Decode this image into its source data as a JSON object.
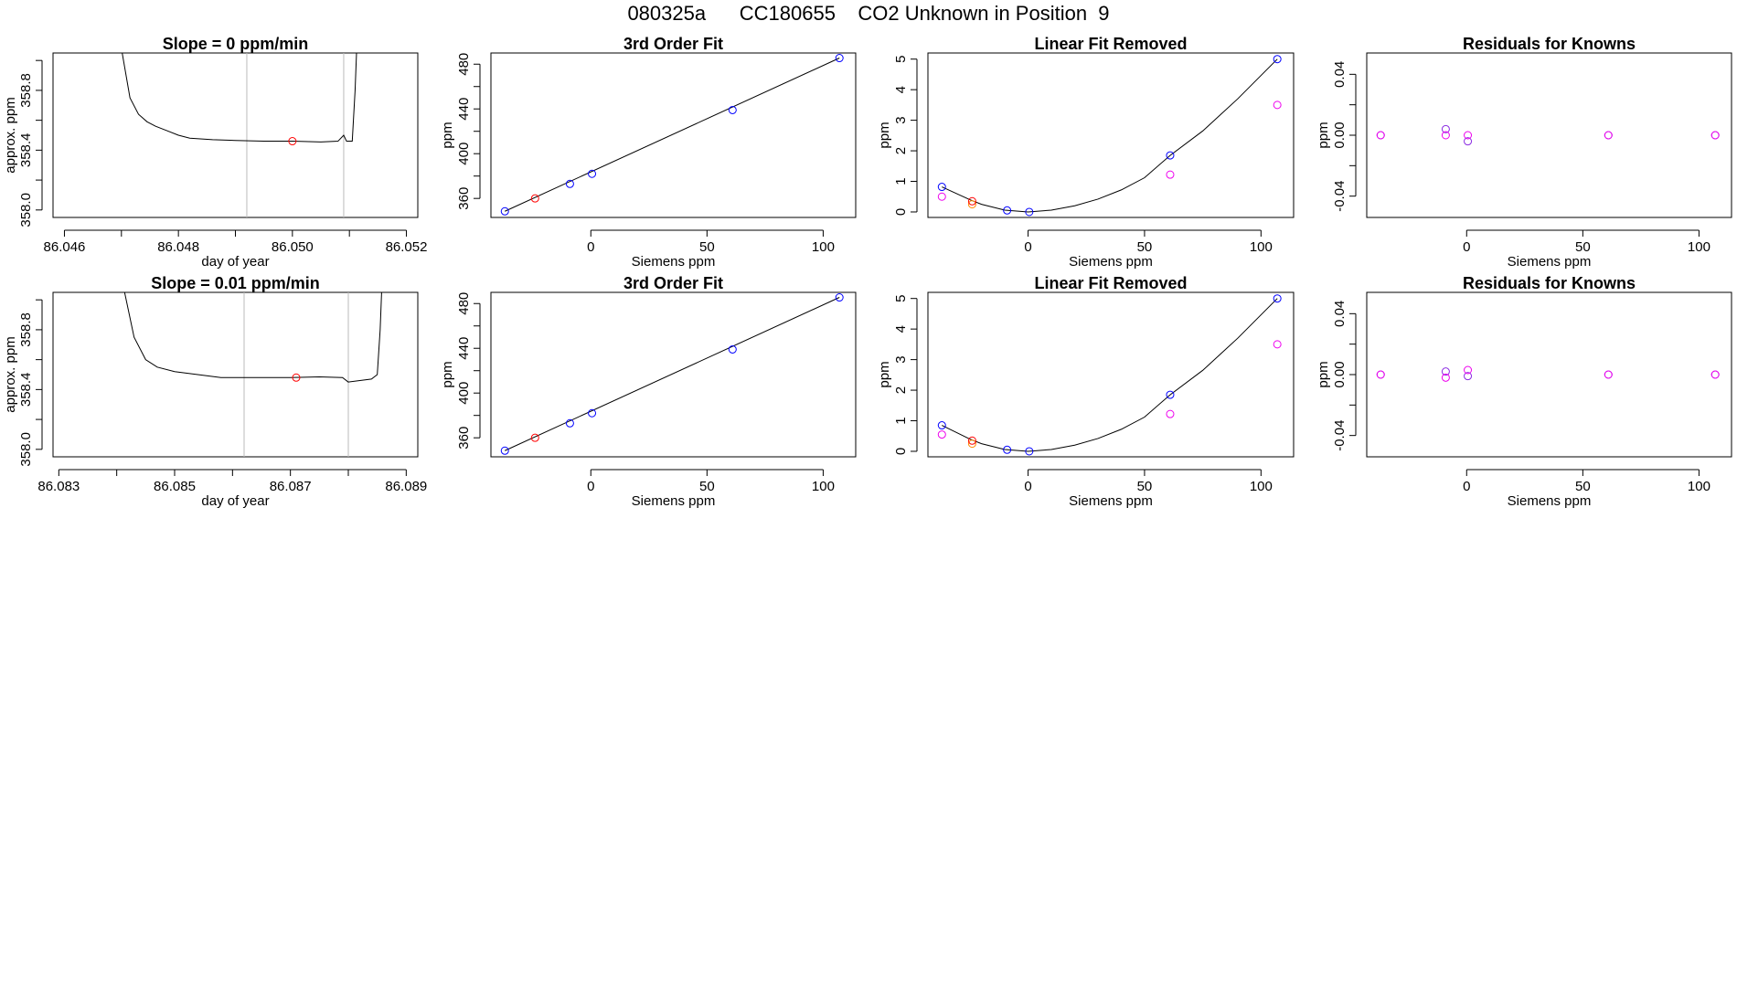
{
  "figure": {
    "title": "080325a      CC180655    CO2 Unknown in Position  9"
  },
  "colors": {
    "series_line": "#000000",
    "known_points": "#0000ff",
    "unknown_point": "#ff0000",
    "unknown_alt": "#ff8c00",
    "linear_fit_points": "#ee00ee",
    "residual_points": "#8a2be2",
    "window_markers": "#bbbbbb"
  },
  "chart_data": [
    {
      "id": "r1-timeseries",
      "type": "line",
      "title": "Slope =  0  ppm/min",
      "xlabel": "day of year",
      "ylabel": "approx. ppm",
      "xlim": [
        86.0458,
        86.0522
      ],
      "ylim": [
        357.95,
        359.05
      ],
      "xticks": [
        86.046,
        86.047,
        86.048,
        86.049,
        86.05,
        86.051,
        86.052
      ],
      "xtick_labels": [
        "86.046",
        "",
        "86.048",
        "",
        "86.050",
        "",
        "86.052"
      ],
      "yticks": [
        358.0,
        358.2,
        358.4,
        358.6,
        358.8,
        359.0
      ],
      "ytick_labels": [
        "358.0",
        "",
        "358.4",
        "",
        "358.8",
        ""
      ],
      "window": [
        86.0492,
        86.0509
      ],
      "marker": {
        "x": 86.05,
        "y": 358.46
      },
      "series": [
        {
          "x": [
            86.0469,
            86.04715,
            86.0473,
            86.04745,
            86.0476,
            86.0478,
            86.048,
            86.0482,
            86.0486,
            86.049,
            86.0495,
            86.05,
            86.0505,
            86.0508,
            86.0509,
            86.05095,
            86.05105,
            86.0511,
            86.05115
          ],
          "y": [
            359.3,
            358.75,
            358.64,
            358.59,
            358.56,
            358.53,
            358.5,
            358.48,
            358.47,
            358.465,
            358.46,
            358.46,
            358.455,
            358.46,
            358.5,
            358.46,
            358.46,
            358.8,
            359.3
          ]
        }
      ]
    },
    {
      "id": "r1-thirdorder",
      "type": "scatter",
      "title": "3rd Order Fit",
      "xlabel": "Siemens ppm",
      "ylabel": "ppm",
      "xlim": [
        -43,
        114
      ],
      "ylim": [
        343,
        490
      ],
      "xticks": [
        0,
        50,
        100
      ],
      "xtick_labels": [
        "0",
        "50",
        "100"
      ],
      "yticks": [
        360,
        380,
        400,
        420,
        440,
        460,
        480
      ],
      "ytick_labels": [
        "360",
        "",
        "400",
        "",
        "440",
        "",
        "480"
      ],
      "fit_line": {
        "x": [
          -37,
          107
        ],
        "y": [
          348.5,
          485.5
        ]
      },
      "series": [
        {
          "x": [
            -37,
            -9,
            0.5,
            61,
            107
          ],
          "y": [
            348.5,
            373,
            382,
            439,
            485.5
          ]
        },
        {
          "x": [
            -24
          ],
          "y": [
            360
          ]
        }
      ]
    },
    {
      "id": "r1-linear-removed",
      "type": "scatter",
      "title": "Linear Fit Removed",
      "xlabel": "Siemens ppm",
      "ylabel": "ppm",
      "xlim": [
        -43,
        114
      ],
      "ylim": [
        -0.18,
        5.2
      ],
      "xticks": [
        0,
        50,
        100
      ],
      "xtick_labels": [
        "0",
        "50",
        "100"
      ],
      "yticks": [
        0,
        1,
        2,
        3,
        4,
        5
      ],
      "ytick_labels": [
        "0",
        "1",
        "2",
        "3",
        "4",
        "5"
      ],
      "curve": {
        "x": [
          -37,
          -25,
          -20,
          -10,
          0,
          10,
          20,
          30,
          40,
          50,
          61,
          75,
          90,
          107
        ],
        "y": [
          0.82,
          0.4,
          0.25,
          0.06,
          0,
          0.06,
          0.2,
          0.42,
          0.72,
          1.12,
          1.85,
          2.65,
          3.7,
          5.0
        ]
      },
      "series": [
        {
          "x": [
            -37,
            -9,
            0.5,
            61,
            107
          ],
          "y": [
            0.82,
            0.05,
            0.0,
            1.85,
            5.0
          ]
        },
        {
          "x": [
            -24
          ],
          "y": [
            0.35
          ]
        },
        {
          "x": [
            -24
          ],
          "y": [
            0.25
          ]
        },
        {
          "x": [
            -37,
            61,
            107
          ],
          "y": [
            0.5,
            1.22,
            3.5
          ]
        }
      ]
    },
    {
      "id": "r1-residuals",
      "type": "scatter",
      "title": "Residuals for Knowns",
      "xlabel": "Siemens ppm",
      "ylabel": "ppm",
      "xlim": [
        -43,
        114
      ],
      "ylim": [
        -0.054,
        0.054
      ],
      "xticks": [
        0,
        50,
        100
      ],
      "xtick_labels": [
        "0",
        "50",
        "100"
      ],
      "yticks": [
        -0.04,
        -0.02,
        0.0,
        0.02,
        0.04
      ],
      "ytick_labels": [
        "-0.04",
        "",
        "0.00",
        "",
        "0.04"
      ],
      "series": [
        {
          "x": [
            -37,
            -9,
            0.5,
            61,
            107
          ],
          "y": [
            0.0,
            0.004,
            -0.004,
            0.0,
            0.0
          ]
        },
        {
          "x": [
            -37,
            -9,
            0.5,
            61,
            107
          ],
          "y": [
            0.0,
            0.0,
            0.0,
            0.0,
            0.0
          ]
        }
      ]
    },
    {
      "id": "r2-timeseries",
      "type": "line",
      "title": "Slope =  0.01  ppm/min",
      "xlabel": "day of year",
      "ylabel": "approx. ppm",
      "xlim": [
        86.0829,
        86.0892
      ],
      "ylim": [
        357.95,
        359.05
      ],
      "xticks": [
        86.083,
        86.084,
        86.085,
        86.086,
        86.087,
        86.088,
        86.089
      ],
      "xtick_labels": [
        "86.083",
        "",
        "86.085",
        "",
        "86.087",
        "",
        "86.089"
      ],
      "yticks": [
        358.0,
        358.2,
        358.4,
        358.6,
        358.8,
        359.0
      ],
      "ytick_labels": [
        "358.0",
        "",
        "358.4",
        "",
        "358.8",
        ""
      ],
      "window": [
        86.0862,
        86.088
      ],
      "marker": {
        "x": 86.0871,
        "y": 358.48
      },
      "series": [
        {
          "x": [
            86.084,
            86.0843,
            86.0845,
            86.0847,
            86.085,
            86.0854,
            86.0858,
            86.0862,
            86.0866,
            86.087,
            86.0875,
            86.0879,
            86.088,
            86.0884,
            86.0885,
            86.08855,
            86.0886
          ],
          "y": [
            359.3,
            358.75,
            358.6,
            358.55,
            358.52,
            358.5,
            358.48,
            358.48,
            358.48,
            358.48,
            358.485,
            358.48,
            358.45,
            358.47,
            358.5,
            358.8,
            359.3
          ]
        }
      ]
    },
    {
      "id": "r2-thirdorder",
      "type": "scatter",
      "title": "3rd Order Fit",
      "xlabel": "Siemens ppm",
      "ylabel": "ppm",
      "xlim": [
        -43,
        114
      ],
      "ylim": [
        343,
        490
      ],
      "xticks": [
        0,
        50,
        100
      ],
      "xtick_labels": [
        "0",
        "50",
        "100"
      ],
      "yticks": [
        360,
        380,
        400,
        420,
        440,
        460,
        480
      ],
      "ytick_labels": [
        "360",
        "",
        "400",
        "",
        "440",
        "",
        "480"
      ],
      "fit_line": {
        "x": [
          -37,
          107
        ],
        "y": [
          348.5,
          485.5
        ]
      },
      "series": [
        {
          "x": [
            -37,
            -9,
            0.5,
            61,
            107
          ],
          "y": [
            348.5,
            373,
            382,
            439,
            485.5
          ]
        },
        {
          "x": [
            -24
          ],
          "y": [
            360
          ]
        }
      ]
    },
    {
      "id": "r2-linear-removed",
      "type": "scatter",
      "title": "Linear Fit Removed",
      "xlabel": "Siemens ppm",
      "ylabel": "ppm",
      "xlim": [
        -43,
        114
      ],
      "ylim": [
        -0.18,
        5.2
      ],
      "xticks": [
        0,
        50,
        100
      ],
      "xtick_labels": [
        "0",
        "50",
        "100"
      ],
      "yticks": [
        0,
        1,
        2,
        3,
        4,
        5
      ],
      "ytick_labels": [
        "0",
        "1",
        "2",
        "3",
        "4",
        "5"
      ],
      "curve": {
        "x": [
          -37,
          -25,
          -20,
          -10,
          0,
          10,
          20,
          30,
          40,
          50,
          61,
          75,
          90,
          107
        ],
        "y": [
          0.85,
          0.4,
          0.25,
          0.06,
          0,
          0.06,
          0.2,
          0.42,
          0.72,
          1.12,
          1.85,
          2.65,
          3.7,
          5.0
        ]
      },
      "series": [
        {
          "x": [
            -37,
            -9,
            0.5,
            61,
            107
          ],
          "y": [
            0.85,
            0.05,
            0.0,
            1.85,
            5.0
          ]
        },
        {
          "x": [
            -24
          ],
          "y": [
            0.35
          ]
        },
        {
          "x": [
            -24
          ],
          "y": [
            0.25
          ]
        },
        {
          "x": [
            -37,
            61,
            107
          ],
          "y": [
            0.55,
            1.22,
            3.5
          ]
        }
      ]
    },
    {
      "id": "r2-residuals",
      "type": "scatter",
      "title": "Residuals for Knowns",
      "xlabel": "Siemens ppm",
      "ylabel": "ppm",
      "xlim": [
        -43,
        114
      ],
      "ylim": [
        -0.054,
        0.054
      ],
      "xticks": [
        0,
        50,
        100
      ],
      "xtick_labels": [
        "0",
        "50",
        "100"
      ],
      "yticks": [
        -0.04,
        -0.02,
        0.0,
        0.02,
        0.04
      ],
      "ytick_labels": [
        "-0.04",
        "",
        "0.00",
        "",
        "0.04"
      ],
      "series": [
        {
          "x": [
            -37,
            -9,
            0.5,
            61,
            107
          ],
          "y": [
            0.0,
            0.002,
            -0.001,
            0.0,
            0.0
          ]
        },
        {
          "x": [
            -37,
            -9,
            0.5,
            61,
            107
          ],
          "y": [
            0.0,
            -0.002,
            0.003,
            0.0,
            0.0
          ]
        }
      ]
    }
  ]
}
